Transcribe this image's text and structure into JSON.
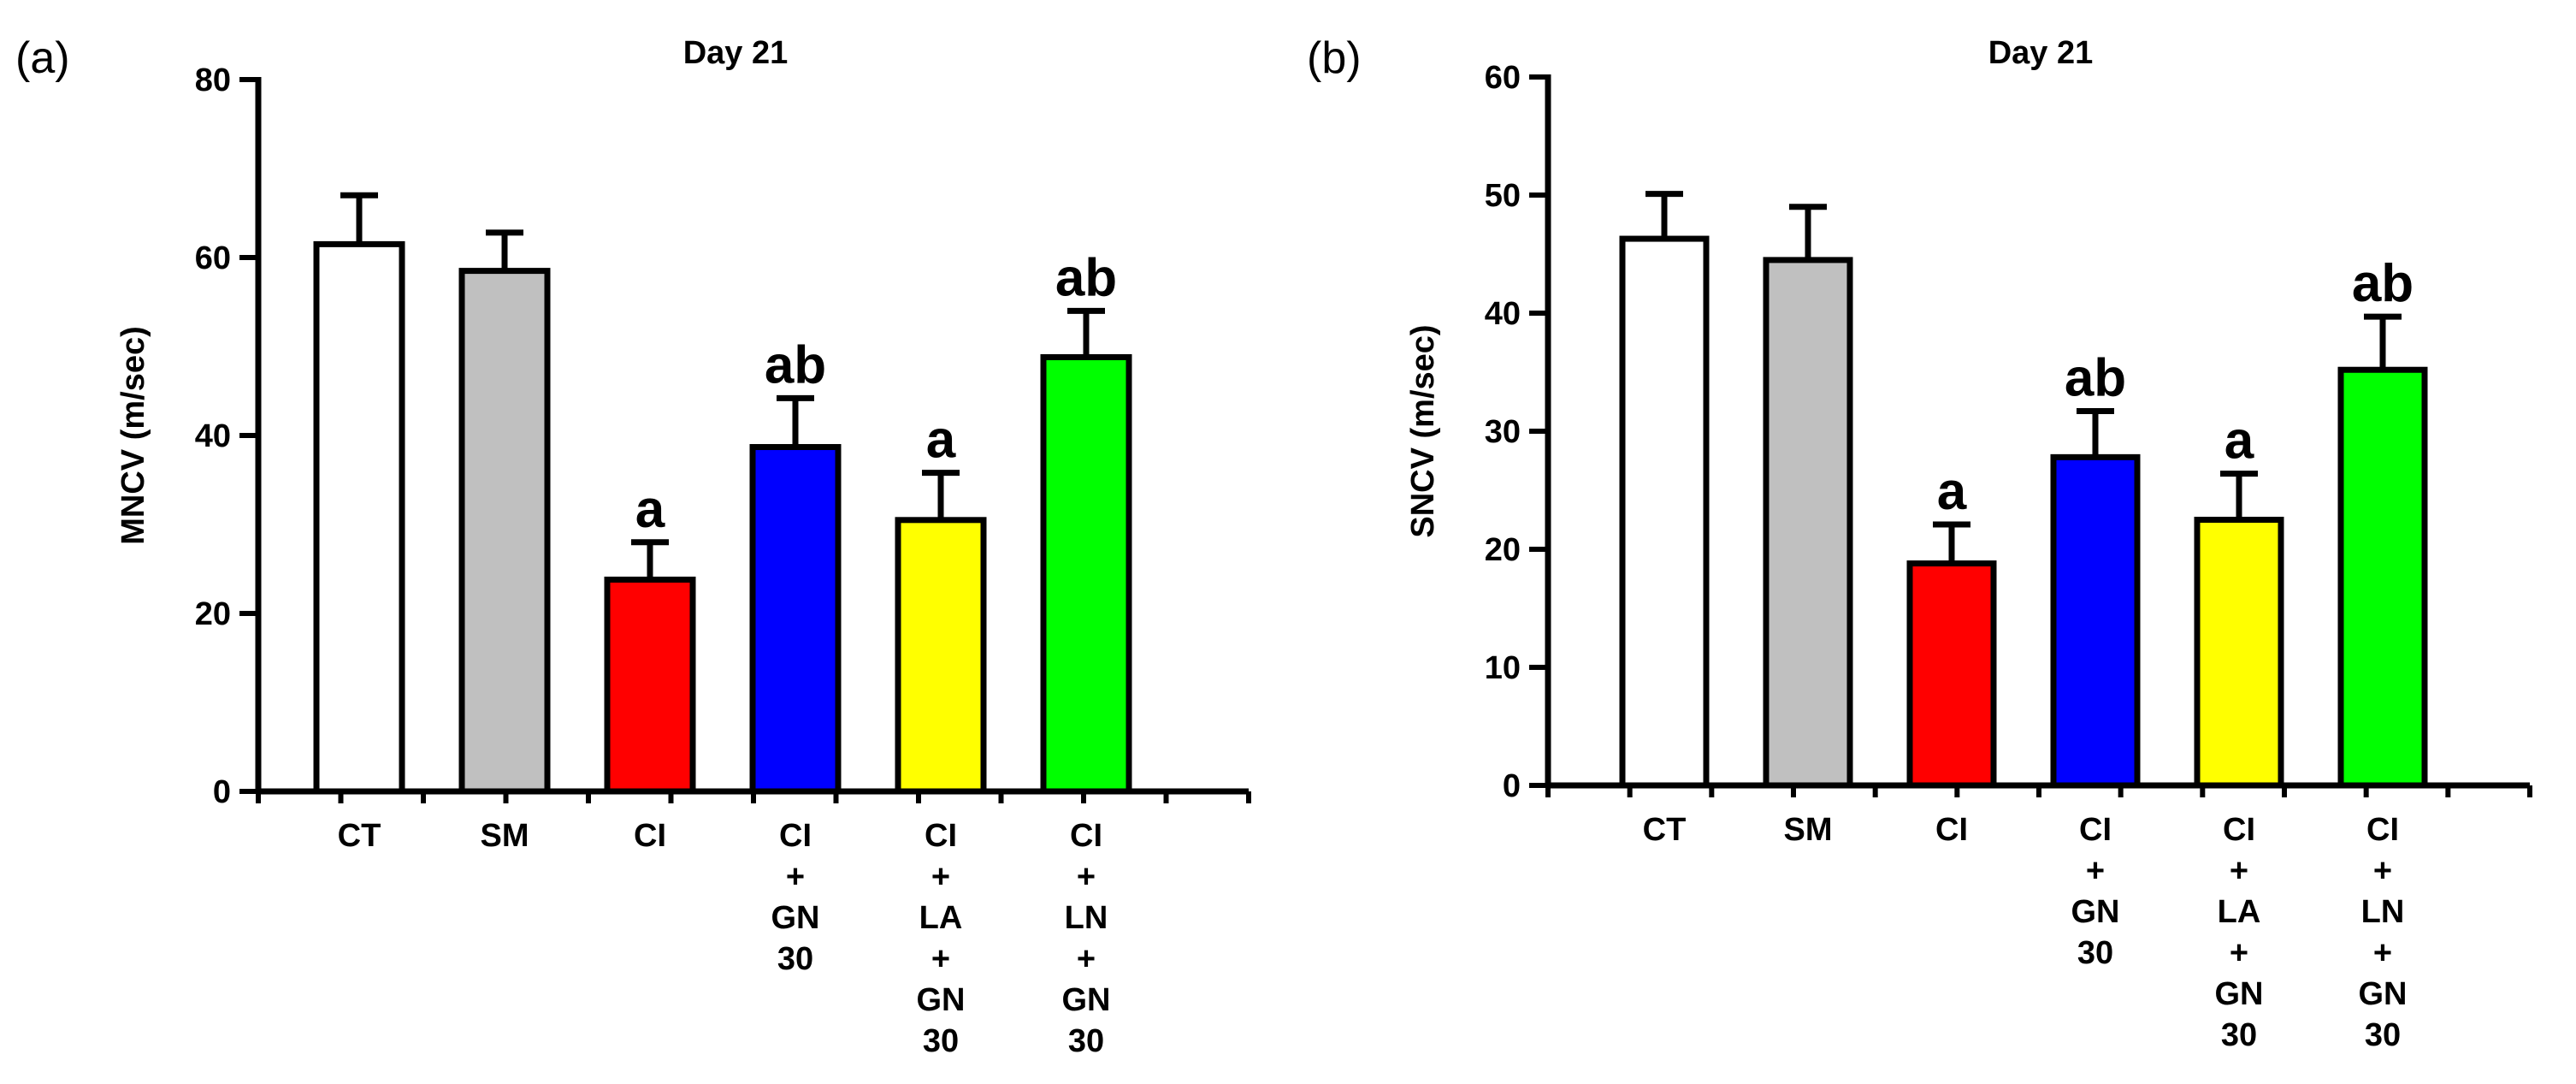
{
  "chart_data": [
    {
      "type": "bar",
      "panel_label": "(a)",
      "title": "Day 21",
      "xlabel": "",
      "ylabel": "MNCV (m/sec)",
      "ylim": [
        0,
        80
      ],
      "yticks": [
        0,
        20,
        40,
        60,
        80
      ],
      "categories": [
        [
          "CT"
        ],
        [
          "SM"
        ],
        [
          "CI"
        ],
        [
          "CI",
          "+",
          "GN",
          "30"
        ],
        [
          "CI",
          "+",
          "LA",
          "+",
          "GN",
          "30"
        ],
        [
          "CI",
          "+",
          "LN",
          "+",
          "GN",
          "30"
        ]
      ],
      "values": [
        61.5,
        58.5,
        23.8,
        38.7,
        30.5,
        48.8
      ],
      "errors": [
        5.5,
        4.3,
        4.2,
        5.5,
        5.3,
        5.2
      ],
      "annotations": [
        "",
        "",
        "a",
        "ab",
        "a",
        "ab"
      ],
      "colors": [
        "#ffffff",
        "#c0c0c0",
        "#ff0000",
        "#0000ff",
        "#ffff00",
        "#00ff00"
      ]
    },
    {
      "type": "bar",
      "panel_label": "(b)",
      "title": "Day 21",
      "xlabel": "",
      "ylabel": "SNCV (m/sec)",
      "ylim": [
        0,
        60
      ],
      "yticks": [
        0,
        10,
        20,
        30,
        40,
        50,
        60
      ],
      "categories": [
        [
          "CT"
        ],
        [
          "SM"
        ],
        [
          "CI"
        ],
        [
          "CI",
          "+",
          "GN",
          "30"
        ],
        [
          "CI",
          "+",
          "LA",
          "+",
          "GN",
          "30"
        ],
        [
          "CI",
          "+",
          "LN",
          "+",
          "GN",
          "30"
        ]
      ],
      "values": [
        46.3,
        44.5,
        18.8,
        27.8,
        22.5,
        35.2
      ],
      "errors": [
        3.8,
        4.5,
        3.3,
        3.9,
        3.9,
        4.5
      ],
      "annotations": [
        "",
        "",
        "a",
        "ab",
        "a",
        "ab"
      ],
      "colors": [
        "#ffffff",
        "#c0c0c0",
        "#ff0000",
        "#0000ff",
        "#ffff00",
        "#00ff00"
      ]
    }
  ]
}
